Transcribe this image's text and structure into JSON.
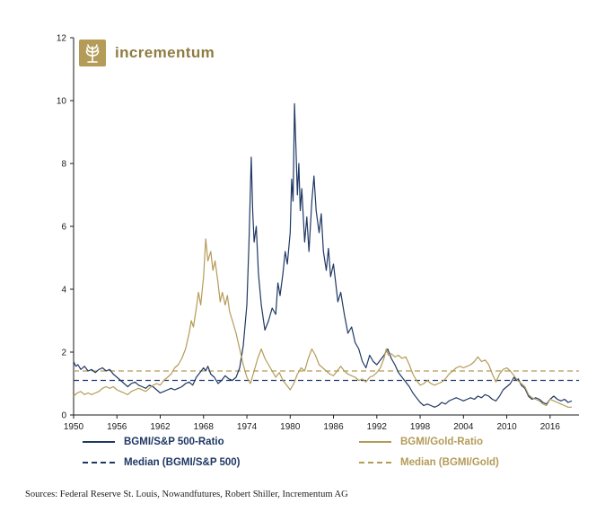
{
  "logo": {
    "text": "incrementum"
  },
  "source": "Sources: Federal Reserve St. Louis, Nowandfutures, Robert Shiller, Incrementum AG",
  "chart_data": {
    "type": "line",
    "title": "",
    "xlabel": "",
    "ylabel": "",
    "xlim": [
      1950,
      2020
    ],
    "ylim": [
      0,
      12
    ],
    "xticks": [
      1950,
      1956,
      1962,
      1968,
      1974,
      1980,
      1986,
      1992,
      1998,
      2004,
      2010,
      2016
    ],
    "yticks": [
      0,
      2,
      4,
      6,
      8,
      10,
      12
    ],
    "grid": false,
    "legend_position": "bottom",
    "series": [
      {
        "name": "BGMI/S&P 500-Ratio",
        "color": "#1F3864",
        "style": "solid",
        "points": [
          [
            1950,
            1.7
          ],
          [
            1950.3,
            1.55
          ],
          [
            1950.6,
            1.6
          ],
          [
            1951,
            1.45
          ],
          [
            1951.5,
            1.55
          ],
          [
            1952,
            1.4
          ],
          [
            1952.5,
            1.45
          ],
          [
            1953,
            1.35
          ],
          [
            1953.5,
            1.45
          ],
          [
            1954,
            1.5
          ],
          [
            1954.5,
            1.4
          ],
          [
            1955,
            1.45
          ],
          [
            1955.5,
            1.3
          ],
          [
            1956,
            1.2
          ],
          [
            1956.5,
            1.1
          ],
          [
            1957,
            1.0
          ],
          [
            1957.5,
            0.9
          ],
          [
            1958,
            1.0
          ],
          [
            1958.5,
            1.05
          ],
          [
            1959,
            0.95
          ],
          [
            1959.5,
            0.9
          ],
          [
            1960,
            0.85
          ],
          [
            1960.5,
            0.95
          ],
          [
            1961,
            0.9
          ],
          [
            1961.5,
            0.8
          ],
          [
            1962,
            0.7
          ],
          [
            1962.5,
            0.75
          ],
          [
            1963,
            0.8
          ],
          [
            1963.5,
            0.85
          ],
          [
            1964,
            0.8
          ],
          [
            1964.5,
            0.85
          ],
          [
            1965,
            0.9
          ],
          [
            1965.5,
            1.0
          ],
          [
            1966,
            1.05
          ],
          [
            1966.5,
            0.95
          ],
          [
            1967,
            1.2
          ],
          [
            1967.5,
            1.35
          ],
          [
            1968,
            1.5
          ],
          [
            1968.3,
            1.4
          ],
          [
            1968.6,
            1.55
          ],
          [
            1969,
            1.3
          ],
          [
            1969.5,
            1.2
          ],
          [
            1970,
            1.0
          ],
          [
            1970.5,
            1.1
          ],
          [
            1971,
            1.25
          ],
          [
            1971.5,
            1.15
          ],
          [
            1972,
            1.1
          ],
          [
            1972.5,
            1.2
          ],
          [
            1973,
            1.5
          ],
          [
            1973.5,
            2.2
          ],
          [
            1974,
            3.5
          ],
          [
            1974.3,
            5.5
          ],
          [
            1974.6,
            8.2
          ],
          [
            1974.8,
            6.5
          ],
          [
            1975,
            5.5
          ],
          [
            1975.3,
            6.0
          ],
          [
            1975.6,
            4.5
          ],
          [
            1976,
            3.5
          ],
          [
            1976.5,
            2.7
          ],
          [
            1977,
            3.0
          ],
          [
            1977.5,
            3.4
          ],
          [
            1978,
            3.2
          ],
          [
            1978.3,
            4.2
          ],
          [
            1978.6,
            3.8
          ],
          [
            1979,
            4.5
          ],
          [
            1979.3,
            5.2
          ],
          [
            1979.6,
            4.8
          ],
          [
            1980,
            5.8
          ],
          [
            1980.2,
            7.5
          ],
          [
            1980.4,
            6.8
          ],
          [
            1980.6,
            9.9
          ],
          [
            1980.8,
            8.5
          ],
          [
            1981,
            7.0
          ],
          [
            1981.2,
            8.0
          ],
          [
            1981.4,
            6.5
          ],
          [
            1981.6,
            7.2
          ],
          [
            1982,
            5.5
          ],
          [
            1982.3,
            6.3
          ],
          [
            1982.6,
            5.2
          ],
          [
            1983,
            6.8
          ],
          [
            1983.3,
            7.6
          ],
          [
            1983.6,
            6.5
          ],
          [
            1984,
            5.8
          ],
          [
            1984.3,
            6.4
          ],
          [
            1984.6,
            5.2
          ],
          [
            1985,
            4.6
          ],
          [
            1985.3,
            5.3
          ],
          [
            1985.6,
            4.4
          ],
          [
            1986,
            4.8
          ],
          [
            1986.3,
            4.2
          ],
          [
            1986.6,
            3.6
          ],
          [
            1987,
            3.9
          ],
          [
            1987.5,
            3.2
          ],
          [
            1988,
            2.6
          ],
          [
            1988.5,
            2.8
          ],
          [
            1989,
            2.3
          ],
          [
            1989.5,
            2.1
          ],
          [
            1990,
            1.7
          ],
          [
            1990.5,
            1.5
          ],
          [
            1991,
            1.9
          ],
          [
            1991.5,
            1.7
          ],
          [
            1992,
            1.6
          ],
          [
            1992.5,
            1.75
          ],
          [
            1993,
            1.9
          ],
          [
            1993.5,
            2.1
          ],
          [
            1994,
            1.8
          ],
          [
            1994.5,
            1.6
          ],
          [
            1995,
            1.35
          ],
          [
            1995.5,
            1.2
          ],
          [
            1996,
            1.05
          ],
          [
            1996.5,
            0.9
          ],
          [
            1997,
            0.7
          ],
          [
            1997.5,
            0.55
          ],
          [
            1998,
            0.4
          ],
          [
            1998.5,
            0.3
          ],
          [
            1999,
            0.35
          ],
          [
            1999.5,
            0.3
          ],
          [
            2000,
            0.25
          ],
          [
            2000.5,
            0.3
          ],
          [
            2001,
            0.4
          ],
          [
            2001.5,
            0.35
          ],
          [
            2002,
            0.45
          ],
          [
            2002.5,
            0.5
          ],
          [
            2003,
            0.55
          ],
          [
            2003.5,
            0.5
          ],
          [
            2004,
            0.45
          ],
          [
            2004.5,
            0.5
          ],
          [
            2005,
            0.55
          ],
          [
            2005.5,
            0.5
          ],
          [
            2006,
            0.6
          ],
          [
            2006.5,
            0.55
          ],
          [
            2007,
            0.65
          ],
          [
            2007.5,
            0.6
          ],
          [
            2008,
            0.5
          ],
          [
            2008.5,
            0.45
          ],
          [
            2009,
            0.6
          ],
          [
            2009.5,
            0.8
          ],
          [
            2010,
            0.9
          ],
          [
            2010.5,
            1.0
          ],
          [
            2011,
            1.2
          ],
          [
            2011.3,
            1.1
          ],
          [
            2011.6,
            1.15
          ],
          [
            2012,
            0.95
          ],
          [
            2012.5,
            0.85
          ],
          [
            2013,
            0.6
          ],
          [
            2013.5,
            0.5
          ],
          [
            2014,
            0.55
          ],
          [
            2014.5,
            0.5
          ],
          [
            2015,
            0.4
          ],
          [
            2015.5,
            0.35
          ],
          [
            2016,
            0.5
          ],
          [
            2016.5,
            0.6
          ],
          [
            2017,
            0.5
          ],
          [
            2017.5,
            0.45
          ],
          [
            2018,
            0.5
          ],
          [
            2018.5,
            0.4
          ],
          [
            2019,
            0.45
          ]
        ]
      },
      {
        "name": "BGMI/Gold-Ratio",
        "color": "#B49B57",
        "style": "solid",
        "points": [
          [
            1950,
            0.6
          ],
          [
            1950.5,
            0.7
          ],
          [
            1951,
            0.75
          ],
          [
            1951.5,
            0.65
          ],
          [
            1952,
            0.7
          ],
          [
            1952.5,
            0.65
          ],
          [
            1953,
            0.7
          ],
          [
            1953.5,
            0.75
          ],
          [
            1954,
            0.85
          ],
          [
            1954.5,
            0.9
          ],
          [
            1955,
            0.85
          ],
          [
            1955.5,
            0.9
          ],
          [
            1956,
            0.8
          ],
          [
            1956.5,
            0.75
          ],
          [
            1957,
            0.7
          ],
          [
            1957.5,
            0.65
          ],
          [
            1958,
            0.75
          ],
          [
            1958.5,
            0.8
          ],
          [
            1959,
            0.85
          ],
          [
            1959.5,
            0.8
          ],
          [
            1960,
            0.75
          ],
          [
            1960.5,
            0.85
          ],
          [
            1961,
            0.95
          ],
          [
            1961.5,
            1.0
          ],
          [
            1962,
            0.95
          ],
          [
            1962.5,
            1.1
          ],
          [
            1963,
            1.2
          ],
          [
            1963.5,
            1.3
          ],
          [
            1964,
            1.5
          ],
          [
            1964.5,
            1.6
          ],
          [
            1965,
            1.8
          ],
          [
            1965.5,
            2.1
          ],
          [
            1966,
            2.6
          ],
          [
            1966.3,
            3.0
          ],
          [
            1966.6,
            2.8
          ],
          [
            1967,
            3.4
          ],
          [
            1967.3,
            3.9
          ],
          [
            1967.6,
            3.5
          ],
          [
            1968,
            4.4
          ],
          [
            1968.3,
            5.6
          ],
          [
            1968.6,
            4.9
          ],
          [
            1969,
            5.2
          ],
          [
            1969.3,
            4.6
          ],
          [
            1969.6,
            4.9
          ],
          [
            1970,
            4.2
          ],
          [
            1970.3,
            3.6
          ],
          [
            1970.6,
            3.9
          ],
          [
            1971,
            3.5
          ],
          [
            1971.3,
            3.8
          ],
          [
            1971.6,
            3.3
          ],
          [
            1972,
            3.0
          ],
          [
            1972.5,
            2.6
          ],
          [
            1973,
            2.1
          ],
          [
            1973.5,
            1.6
          ],
          [
            1974,
            1.2
          ],
          [
            1974.5,
            1.0
          ],
          [
            1975,
            1.4
          ],
          [
            1975.5,
            1.8
          ],
          [
            1976,
            2.1
          ],
          [
            1976.5,
            1.8
          ],
          [
            1977,
            1.6
          ],
          [
            1977.5,
            1.4
          ],
          [
            1978,
            1.2
          ],
          [
            1978.5,
            1.35
          ],
          [
            1979,
            1.1
          ],
          [
            1979.5,
            0.95
          ],
          [
            1980,
            0.8
          ],
          [
            1980.5,
            1.0
          ],
          [
            1981,
            1.3
          ],
          [
            1981.5,
            1.5
          ],
          [
            1982,
            1.4
          ],
          [
            1982.5,
            1.8
          ],
          [
            1983,
            2.1
          ],
          [
            1983.5,
            1.9
          ],
          [
            1984,
            1.6
          ],
          [
            1984.5,
            1.5
          ],
          [
            1985,
            1.4
          ],
          [
            1985.5,
            1.3
          ],
          [
            1986,
            1.25
          ],
          [
            1986.5,
            1.4
          ],
          [
            1987,
            1.55
          ],
          [
            1987.5,
            1.4
          ],
          [
            1988,
            1.3
          ],
          [
            1988.5,
            1.25
          ],
          [
            1989,
            1.2
          ],
          [
            1989.5,
            1.1
          ],
          [
            1990,
            1.15
          ],
          [
            1990.5,
            1.05
          ],
          [
            1991,
            1.2
          ],
          [
            1991.5,
            1.25
          ],
          [
            1992,
            1.35
          ],
          [
            1992.5,
            1.5
          ],
          [
            1993,
            1.8
          ],
          [
            1993.3,
            2.1
          ],
          [
            1993.6,
            1.9
          ],
          [
            1994,
            1.95
          ],
          [
            1994.5,
            1.85
          ],
          [
            1995,
            1.9
          ],
          [
            1995.5,
            1.8
          ],
          [
            1996,
            1.85
          ],
          [
            1996.5,
            1.6
          ],
          [
            1997,
            1.3
          ],
          [
            1997.5,
            1.1
          ],
          [
            1998,
            0.95
          ],
          [
            1998.5,
            1.0
          ],
          [
            1999,
            1.1
          ],
          [
            1999.5,
            1.0
          ],
          [
            2000,
            0.95
          ],
          [
            2000.5,
            1.0
          ],
          [
            2001,
            1.05
          ],
          [
            2001.5,
            1.15
          ],
          [
            2002,
            1.3
          ],
          [
            2002.5,
            1.4
          ],
          [
            2003,
            1.5
          ],
          [
            2003.5,
            1.55
          ],
          [
            2004,
            1.5
          ],
          [
            2004.5,
            1.55
          ],
          [
            2005,
            1.6
          ],
          [
            2005.5,
            1.7
          ],
          [
            2006,
            1.85
          ],
          [
            2006.5,
            1.7
          ],
          [
            2007,
            1.75
          ],
          [
            2007.5,
            1.6
          ],
          [
            2008,
            1.3
          ],
          [
            2008.5,
            1.05
          ],
          [
            2009,
            1.3
          ],
          [
            2009.5,
            1.45
          ],
          [
            2010,
            1.5
          ],
          [
            2010.5,
            1.4
          ],
          [
            2011,
            1.25
          ],
          [
            2011.5,
            1.1
          ],
          [
            2012,
            1.0
          ],
          [
            2012.5,
            0.9
          ],
          [
            2013,
            0.65
          ],
          [
            2013.5,
            0.55
          ],
          [
            2014,
            0.5
          ],
          [
            2014.5,
            0.45
          ],
          [
            2015,
            0.35
          ],
          [
            2015.5,
            0.3
          ],
          [
            2016,
            0.5
          ],
          [
            2016.5,
            0.45
          ],
          [
            2017,
            0.4
          ],
          [
            2017.5,
            0.35
          ],
          [
            2018,
            0.3
          ],
          [
            2018.5,
            0.25
          ],
          [
            2019,
            0.25
          ]
        ]
      },
      {
        "name": "Median (BGMI/S&P 500)",
        "color": "#1F3864",
        "style": "dashed",
        "value": 1.1
      },
      {
        "name": "Median (BGMI/Gold)",
        "color": "#B49B57",
        "style": "dashed",
        "value": 1.4
      }
    ]
  }
}
